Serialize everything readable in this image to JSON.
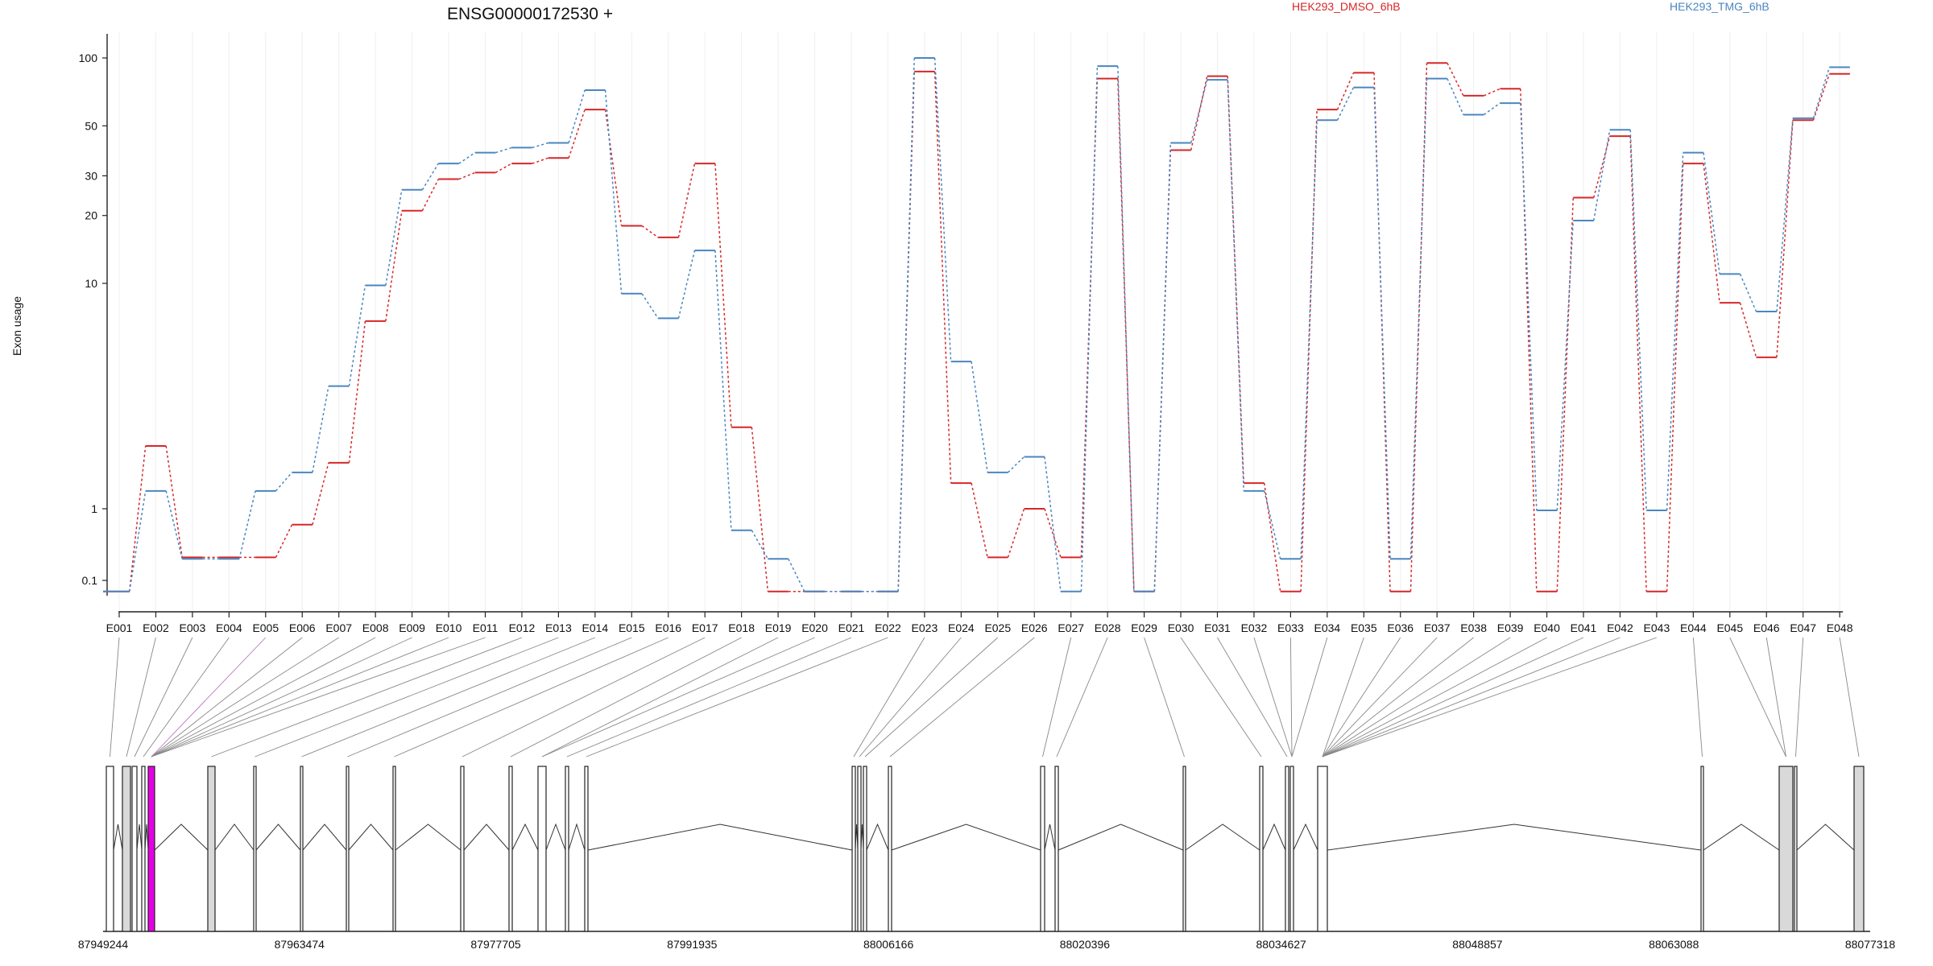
{
  "chart_data": {
    "type": "line",
    "title": "ENSG00000172530 +",
    "ylabel": "Exon usage",
    "yscale": "log",
    "y_ticks": [
      "100",
      "50",
      "30",
      "20",
      "10",
      "1",
      "0.1"
    ],
    "categories": [
      "E001",
      "E002",
      "E003",
      "E004",
      "E005",
      "E006",
      "E007",
      "E008",
      "E009",
      "E010",
      "E011",
      "E012",
      "E013",
      "E014",
      "E015",
      "E016",
      "E017",
      "E018",
      "E019",
      "E020",
      "E021",
      "E022",
      "E023",
      "E024",
      "E025",
      "E026",
      "E027",
      "E028",
      "E029",
      "E030",
      "E031",
      "E032",
      "E033",
      "E034",
      "E035",
      "E036",
      "E037",
      "E038",
      "E039",
      "E040",
      "E041",
      "E042",
      "E043",
      "E044",
      "E045",
      "E046",
      "E047",
      "E048"
    ],
    "series": [
      {
        "name": "HEK293_DMSO_6hB",
        "color": "#d62728",
        "values": [
          0.07,
          1.9,
          0.21,
          0.21,
          0.21,
          0.6,
          1.6,
          6.8,
          21,
          29,
          31,
          34,
          36,
          59,
          18,
          16,
          34,
          2.3,
          0.07,
          0.07,
          0.07,
          0.07,
          87,
          1.3,
          0.21,
          1.0,
          0.21,
          81,
          0.07,
          39,
          83,
          1.3,
          0.07,
          59,
          86,
          0.07,
          95,
          68,
          73,
          0.07,
          24,
          45,
          0.07,
          34,
          8.2,
          4.7,
          53,
          85
        ]
      },
      {
        "name": "HEK293_TMG_6hB",
        "color": "#4a86c0",
        "values": [
          0.07,
          1.2,
          0.2,
          0.2,
          1.2,
          1.45,
          3.5,
          9.8,
          26,
          34,
          38,
          40,
          42,
          72,
          9.0,
          7.0,
          14,
          0.5,
          0.2,
          0.07,
          0.07,
          0.07,
          100,
          4.5,
          1.45,
          1.7,
          0.07,
          92,
          0.07,
          42,
          80,
          1.2,
          0.2,
          53,
          74,
          0.2,
          81,
          56,
          63,
          0.95,
          19,
          48,
          0.95,
          38,
          11,
          7.5,
          54,
          91
        ]
      }
    ],
    "genomic_axis": {
      "ticks": [
        "87949244",
        "87963474",
        "87977705",
        "87991935",
        "88006166",
        "88020396",
        "88034627",
        "88048857",
        "88063088",
        "88077318"
      ],
      "highlighted_exon": "E002"
    }
  }
}
